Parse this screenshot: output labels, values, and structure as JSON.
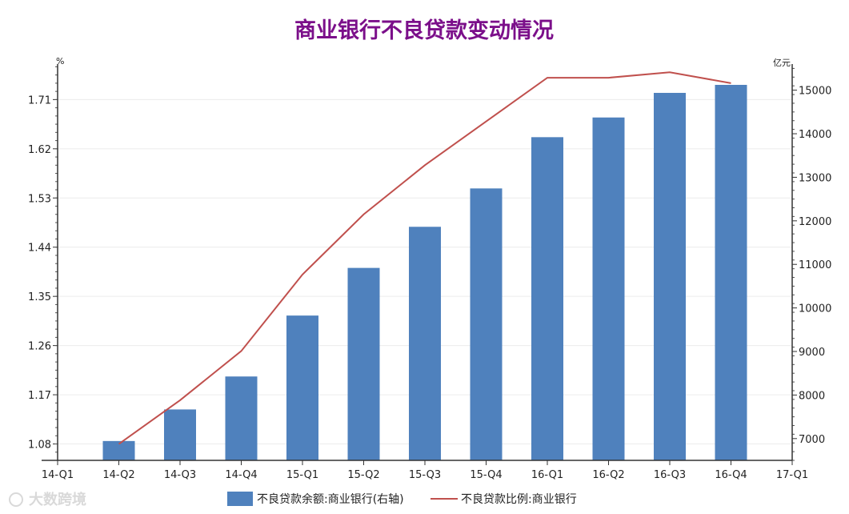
{
  "chart_data": {
    "type": "bar+line",
    "title": "商业银行不良贷款变动情况",
    "left_axis": {
      "unit": "%",
      "ticks": [
        "1.08",
        "1.17",
        "1.26",
        "1.35",
        "1.44",
        "1.53",
        "1.62",
        "1.71"
      ],
      "range": [
        1.05,
        1.775
      ]
    },
    "right_axis": {
      "unit": "亿元",
      "ticks": [
        "7000",
        "8000",
        "9000",
        "10000",
        "11000",
        "12000",
        "13000",
        "14000",
        "15000"
      ],
      "range": [
        6500,
        15600
      ]
    },
    "x_ticks": [
      "14-Q1",
      "14-Q2",
      "14-Q3",
      "14-Q4",
      "15-Q1",
      "15-Q2",
      "15-Q3",
      "15-Q4",
      "16-Q1",
      "16-Q2",
      "16-Q3",
      "16-Q4",
      "17-Q1"
    ],
    "series": [
      {
        "name": "不良贷款余额:商业银行(右轴)",
        "kind": "bar",
        "axis": "right",
        "color": "#4f81bd",
        "categories": [
          "14-Q2",
          "14-Q3",
          "14-Q4",
          "15-Q1",
          "15-Q2",
          "15-Q3",
          "15-Q4",
          "16-Q1",
          "16-Q2",
          "16-Q3",
          "16-Q4"
        ],
        "values": [
          6944,
          7669,
          8426,
          9825,
          10919,
          11863,
          12744,
          13921,
          14373,
          14938,
          15122
        ]
      },
      {
        "name": "不良贷款比例:商业银行",
        "kind": "line",
        "axis": "left",
        "color": "#c0504d",
        "categories": [
          "14-Q2",
          "14-Q3",
          "14-Q4",
          "15-Q1",
          "15-Q2",
          "15-Q3",
          "15-Q4",
          "16-Q1",
          "16-Q2",
          "16-Q3",
          "16-Q4"
        ],
        "values": [
          1.08,
          1.16,
          1.25,
          1.39,
          1.5,
          1.59,
          1.67,
          1.75,
          1.75,
          1.76,
          1.74
        ]
      }
    ],
    "grid": true,
    "legend_position": "bottom"
  },
  "watermark": "大数跨境",
  "colors": {
    "title": "#7b0f8a",
    "bar": "#4f81bd",
    "line": "#c0504d"
  }
}
